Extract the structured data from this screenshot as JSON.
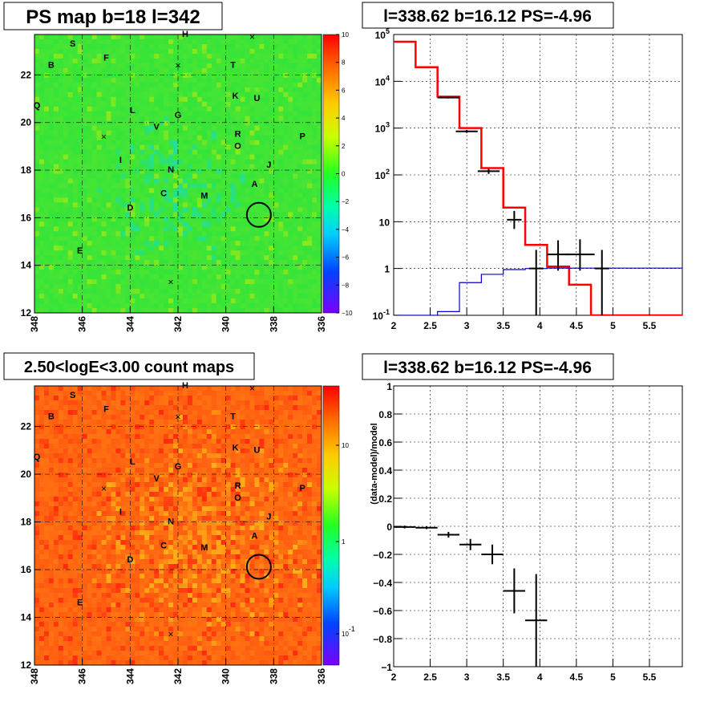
{
  "chart_data": [
    {
      "type": "heatmap",
      "title": "PS map b=18 l=342",
      "xlabel": "",
      "ylabel": "",
      "xlim": [
        348,
        336
      ],
      "ylim": [
        12,
        23.7
      ],
      "x_ticks": [
        "348",
        "346",
        "344",
        "342",
        "340",
        "338",
        "336"
      ],
      "y_ticks": [
        "12",
        "14",
        "16",
        "18",
        "20",
        "22"
      ],
      "colorbar": {
        "range": [
          -10,
          10
        ],
        "ticks": [
          "10",
          "8",
          "6",
          "4",
          "2",
          "0",
          "−2",
          "−4",
          "−6",
          "−8",
          "−10"
        ],
        "scale": "linear"
      },
      "sources": [
        {
          "label": "S",
          "l": 346.4,
          "b": 23.2
        },
        {
          "label": "F",
          "l": 345.0,
          "b": 22.6
        },
        {
          "label": "B",
          "l": 347.3,
          "b": 22.3
        },
        {
          "label": "H",
          "l": 341.7,
          "b": 23.6
        },
        {
          "label": "T",
          "l": 339.7,
          "b": 22.3
        },
        {
          "label": "K",
          "l": 339.6,
          "b": 21.0
        },
        {
          "label": "U",
          "l": 338.7,
          "b": 20.9
        },
        {
          "label": "Q",
          "l": 347.9,
          "b": 20.6
        },
        {
          "label": "L",
          "l": 343.9,
          "b": 20.4
        },
        {
          "label": "G",
          "l": 342.0,
          "b": 20.2
        },
        {
          "label": "V",
          "l": 342.9,
          "b": 19.7
        },
        {
          "label": "R",
          "l": 339.5,
          "b": 19.4
        },
        {
          "label": "O",
          "l": 339.5,
          "b": 18.9
        },
        {
          "label": "P",
          "l": 336.8,
          "b": 19.3
        },
        {
          "label": "I",
          "l": 344.4,
          "b": 18.3
        },
        {
          "label": "N",
          "l": 342.3,
          "b": 17.9
        },
        {
          "label": "J",
          "l": 338.2,
          "b": 18.1
        },
        {
          "label": "A",
          "l": 338.8,
          "b": 17.3
        },
        {
          "label": "C",
          "l": 342.6,
          "b": 16.9
        },
        {
          "label": "M",
          "l": 340.9,
          "b": 16.8
        },
        {
          "label": "D",
          "l": 344.0,
          "b": 16.3
        },
        {
          "label": "E",
          "l": 346.1,
          "b": 14.5
        }
      ],
      "crosses": [
        {
          "l": 338.9,
          "b": 23.6
        },
        {
          "l": 342.0,
          "b": 22.4
        },
        {
          "l": 345.1,
          "b": 19.4
        },
        {
          "l": 342.3,
          "b": 13.3
        }
      ],
      "circle": {
        "l": 338.62,
        "b": 16.12
      },
      "colors": {
        "base": "#33e43a",
        "bright": "#8fe81a",
        "cool": "#22dfa0"
      }
    },
    {
      "type": "line",
      "title": "l=338.62 b=16.12 PS=-4.96",
      "xlabel": "",
      "ylabel": "",
      "xlim": [
        2,
        5.95
      ],
      "ylim": [
        0.1,
        100000
      ],
      "y_scale": "log",
      "x_ticks": [
        "2",
        "2.5",
        "3",
        "3.5",
        "4",
        "4.5",
        "5",
        "5.5"
      ],
      "y_ticks": [
        "10^5",
        "10^4",
        "10^3",
        "10^2",
        "10",
        "1",
        "10^-1"
      ],
      "grid": true,
      "series": [
        {
          "color": "#ff0000",
          "edges": [
            2.0,
            2.3,
            2.6,
            2.9,
            3.2,
            3.5,
            3.8,
            4.1,
            4.4,
            4.7,
            5.0,
            5.3,
            5.95
          ],
          "values": [
            70000,
            20000,
            4700,
            1000,
            140,
            20,
            3.2,
            1.1,
            0.45,
            0.1,
            0.1,
            0.1
          ]
        },
        {
          "color": "#0000cc",
          "edges": [
            2.0,
            2.3,
            2.6,
            2.9,
            3.2,
            3.5,
            3.8,
            4.1,
            4.4,
            4.7,
            5.0,
            5.3,
            5.95
          ],
          "values": [
            0.1,
            0.1,
            0.12,
            0.5,
            0.75,
            0.95,
            1.0,
            1.02,
            1.02,
            1.02,
            1.02,
            1.02
          ]
        }
      ],
      "data_points": [
        {
          "x": 2.75,
          "y": 4500,
          "xerr": 0.15,
          "ylo": 4300,
          "yhi": 4700
        },
        {
          "x": 3.0,
          "y": 850,
          "xerr": 0.15,
          "ylo": 790,
          "yhi": 910
        },
        {
          "x": 3.3,
          "y": 120,
          "xerr": 0.15,
          "ylo": 105,
          "yhi": 135
        },
        {
          "x": 3.65,
          "y": 11,
          "xerr": 0.1,
          "ylo": 7,
          "yhi": 17
        },
        {
          "x": 3.95,
          "y": 1,
          "xerr": 0.1,
          "ylo": 0.1,
          "yhi": 2.5
        },
        {
          "x": 4.25,
          "y": 2,
          "xerr": 0.15,
          "ylo": 0.9,
          "yhi": 4
        },
        {
          "x": 4.55,
          "y": 2,
          "xerr": 0.2,
          "ylo": 0.9,
          "yhi": 4.2
        },
        {
          "x": 4.85,
          "y": 1,
          "xerr": 0.1,
          "ylo": 0.1,
          "yhi": 2.5
        }
      ]
    },
    {
      "type": "heatmap",
      "title": "2.50<logE<3.00 count maps",
      "xlabel": "",
      "ylabel": "",
      "xlim": [
        348,
        336
      ],
      "ylim": [
        12,
        23.7
      ],
      "x_ticks": [
        "348",
        "346",
        "344",
        "342",
        "340",
        "338",
        "336"
      ],
      "y_ticks": [
        "12",
        "14",
        "16",
        "18",
        "20",
        "22"
      ],
      "colorbar": {
        "scale": "log",
        "ticks": [
          "10",
          "1",
          "10^-1"
        ]
      },
      "circle": {
        "l": 338.62,
        "b": 16.12
      },
      "colors": {
        "base": "#ff5a10",
        "bright": "#ffb018",
        "edge": "#ff2a10"
      }
    },
    {
      "type": "scatter",
      "title": "l=338.62 b=16.12 PS=-4.96",
      "xlabel": "",
      "ylabel": "(data-model)/model",
      "xlim": [
        2,
        5.95
      ],
      "ylim": [
        -1,
        1
      ],
      "x_ticks": [
        "2",
        "2.5",
        "3",
        "3.5",
        "4",
        "4.5",
        "5",
        "5.5"
      ],
      "y_ticks": [
        "1",
        "0.8",
        "0.6",
        "0.4",
        "0.2",
        "0",
        "−0.2",
        "−0.4",
        "−0.6",
        "−0.8",
        "−1"
      ],
      "grid": true,
      "points": [
        {
          "x": 2.15,
          "y": -0.005,
          "xerr": 0.15,
          "yerr": 0.01
        },
        {
          "x": 2.45,
          "y": -0.01,
          "xerr": 0.15,
          "yerr": 0.01
        },
        {
          "x": 2.75,
          "y": -0.06,
          "xerr": 0.15,
          "yerr": 0.02
        },
        {
          "x": 3.05,
          "y": -0.13,
          "xerr": 0.15,
          "yerr": 0.04
        },
        {
          "x": 3.35,
          "y": -0.2,
          "xerr": 0.15,
          "yerr": 0.07
        },
        {
          "x": 3.65,
          "y": -0.46,
          "xerr": 0.15,
          "yerr": 0.16
        },
        {
          "x": 3.95,
          "y": -0.67,
          "xerr": 0.15,
          "yerr": 0.33
        }
      ]
    }
  ]
}
